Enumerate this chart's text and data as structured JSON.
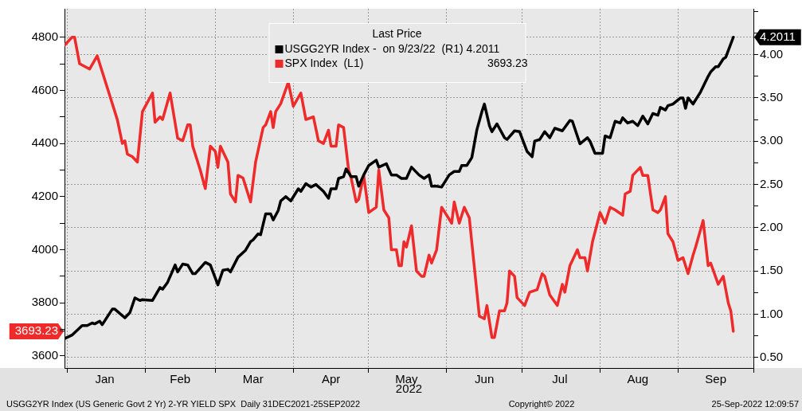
{
  "chart_data": {
    "type": "line",
    "xlabel": "2022",
    "legend_title": "Last Price",
    "legend": "top",
    "grid": true,
    "marker": "none",
    "line_style": "solid",
    "xlim": [
      "2021-12-31",
      "2022-10-01"
    ],
    "xticks": [
      {
        "value": "2022-01-01",
        "label": null
      },
      {
        "value": "2022-01-16",
        "label": "Jan"
      },
      {
        "value": "2022-02-01",
        "label": null
      },
      {
        "value": "2022-02-15",
        "label": "Feb"
      },
      {
        "value": "2022-03-01",
        "label": null
      },
      {
        "value": "2022-03-16",
        "label": "Mar"
      },
      {
        "value": "2022-04-01",
        "label": null
      },
      {
        "value": "2022-04-16",
        "label": "Apr"
      },
      {
        "value": "2022-05-01",
        "label": null
      },
      {
        "value": "2022-05-16",
        "label": "May"
      },
      {
        "value": "2022-06-01",
        "label": null
      },
      {
        "value": "2022-06-16",
        "label": "Jun"
      },
      {
        "value": "2022-07-01",
        "label": null
      },
      {
        "value": "2022-07-16",
        "label": "Jul"
      },
      {
        "value": "2022-08-01",
        "label": null
      },
      {
        "value": "2022-08-16",
        "label": "Aug"
      },
      {
        "value": "2022-09-01",
        "label": null
      },
      {
        "value": "2022-09-16",
        "label": "Sep"
      },
      {
        "value": "2022-10-01",
        "label": null
      }
    ],
    "ylim": [
      3555,
      4907
    ],
    "yticks": [
      3600,
      3693.23,
      {
        "value": 3700,
        "label": null
      },
      3800,
      {
        "value": 3900,
        "label": null
      },
      4000,
      {
        "value": 4100,
        "label": null
      },
      4200,
      {
        "value": 4300,
        "label": null
      },
      4400,
      {
        "value": 4500,
        "label": null
      },
      4600,
      {
        "value": 4700,
        "label": null
      },
      4800
    ],
    "y2lim": [
      0.38,
      4.53
    ],
    "y2ticks": [
      {
        "value": 0.5,
        "label": "0.50"
      },
      {
        "value": 0.75,
        "label": null
      },
      {
        "value": 1,
        "label": "1.00"
      },
      {
        "value": 1.25,
        "label": null
      },
      {
        "value": 1.5,
        "label": "1.50"
      },
      {
        "value": 1.75,
        "label": null
      },
      {
        "value": 2,
        "label": "2.00"
      },
      {
        "value": 2.25,
        "label": null
      },
      {
        "value": 2.5,
        "label": "2.50"
      },
      {
        "value": 2.75,
        "label": null
      },
      {
        "value": 3,
        "label": "3.00"
      },
      {
        "value": 3.25,
        "label": null
      },
      {
        "value": 3.5,
        "label": "3.50"
      },
      {
        "value": 3.75,
        "label": null
      },
      {
        "value": 4,
        "label": "4.00"
      },
      4.2011,
      {
        "value": 4.25,
        "label": null
      },
      {
        "value": 4.5,
        "label": null
      }
    ],
    "series": [
      {
        "name": "USGG2YR Index -  on 9/23/22  (R1) 4.2011",
        "color": "#000000",
        "axis": "y2",
        "x": [
          "2021-12-31",
          "2022-01-03",
          "2022-01-07",
          "2022-01-09",
          "2022-01-11",
          "2022-01-12",
          "2022-01-14",
          "2022-01-15",
          "2022-01-19",
          "2022-01-20",
          "2022-01-24",
          "2022-01-26",
          "2022-01-28",
          "2022-01-30",
          "2022-01-31",
          "2022-02-04",
          "2022-02-07",
          "2022-02-08",
          "2022-02-10",
          "2022-02-13",
          "2022-02-14",
          "2022-02-16",
          "2022-02-18",
          "2022-02-20",
          "2022-02-21",
          "2022-02-25",
          "2022-02-27",
          "2022-03-02",
          "2022-03-04",
          "2022-03-06",
          "2022-03-07",
          "2022-03-10",
          "2022-03-13",
          "2022-03-15",
          "2022-03-16",
          "2022-03-18",
          "2022-03-19",
          "2022-03-21",
          "2022-03-23",
          "2022-03-24",
          "2022-03-26",
          "2022-03-27",
          "2022-03-29",
          "2022-03-31",
          "2022-04-03",
          "2022-04-04",
          "2022-04-06",
          "2022-04-08",
          "2022-04-10",
          "2022-04-13",
          "2022-04-15",
          "2022-04-16",
          "2022-04-18",
          "2022-04-19",
          "2022-04-21",
          "2022-04-22",
          "2022-04-24",
          "2022-04-26",
          "2022-04-27",
          "2022-04-29",
          "2022-05-01",
          "2022-05-04",
          "2022-05-05",
          "2022-05-08",
          "2022-05-10",
          "2022-05-12",
          "2022-05-14",
          "2022-05-16",
          "2022-05-18",
          "2022-05-21",
          "2022-05-23",
          "2022-05-25",
          "2022-05-26",
          "2022-05-28",
          "2022-05-30",
          "2022-06-02",
          "2022-06-04",
          "2022-06-06",
          "2022-06-07",
          "2022-06-09",
          "2022-06-11",
          "2022-06-13",
          "2022-06-15",
          "2022-06-16",
          "2022-06-18",
          "2022-06-19",
          "2022-06-21",
          "2022-06-24",
          "2022-06-25",
          "2022-06-28",
          "2022-06-30",
          "2022-07-03",
          "2022-07-05",
          "2022-07-06",
          "2022-07-08",
          "2022-07-10",
          "2022-07-12",
          "2022-07-14",
          "2022-07-17",
          "2022-07-20",
          "2022-07-21",
          "2022-07-24",
          "2022-07-27",
          "2022-07-28",
          "2022-07-30",
          "2022-08-02",
          "2022-08-03",
          "2022-08-05",
          "2022-08-07",
          "2022-08-09",
          "2022-08-10",
          "2022-08-12",
          "2022-08-14",
          "2022-08-16",
          "2022-08-18",
          "2022-08-20",
          "2022-08-22",
          "2022-08-24",
          "2022-08-25",
          "2022-08-27",
          "2022-08-28",
          "2022-08-30",
          "2022-09-02",
          "2022-09-03",
          "2022-09-04",
          "2022-09-05",
          "2022-09-07",
          "2022-09-10",
          "2022-09-13",
          "2022-09-14",
          "2022-09-16",
          "2022-09-17",
          "2022-09-19",
          "2022-09-20",
          "2022-09-23"
        ],
        "values": [
          0.72,
          0.76,
          0.87,
          0.87,
          0.9,
          0.89,
          0.92,
          0.88,
          1.06,
          1.06,
          0.96,
          1.02,
          1.19,
          1.16,
          1.17,
          1.16,
          1.31,
          1.29,
          1.37,
          1.57,
          1.49,
          1.58,
          1.57,
          1.47,
          1.47,
          1.6,
          1.57,
          1.34,
          1.51,
          1.52,
          1.49,
          1.66,
          1.74,
          1.84,
          1.86,
          1.93,
          1.92,
          2.16,
          2.16,
          2.09,
          2.2,
          2.31,
          2.36,
          2.31,
          2.45,
          2.42,
          2.51,
          2.47,
          2.5,
          2.42,
          2.34,
          2.45,
          2.45,
          2.57,
          2.59,
          2.68,
          2.59,
          2.59,
          2.48,
          2.61,
          2.72,
          2.78,
          2.7,
          2.74,
          2.61,
          2.61,
          2.57,
          2.57,
          2.7,
          2.61,
          2.57,
          2.61,
          2.48,
          2.48,
          2.47,
          2.61,
          2.65,
          2.65,
          2.72,
          2.72,
          2.81,
          3.13,
          3.34,
          3.43,
          3.18,
          3.11,
          3.2,
          3.04,
          3.02,
          3.12,
          3.11,
          2.88,
          2.82,
          3.0,
          3.02,
          3.11,
          3.04,
          3.15,
          3.12,
          3.24,
          3.23,
          2.97,
          3.04,
          3.0,
          2.86,
          2.86,
          3.06,
          3.04,
          3.23,
          3.21,
          3.27,
          3.21,
          3.23,
          3.18,
          3.29,
          3.2,
          3.32,
          3.3,
          3.39,
          3.36,
          3.41,
          3.43,
          3.5,
          3.5,
          3.38,
          3.5,
          3.43,
          3.57,
          3.75,
          3.8,
          3.86,
          3.86,
          3.95,
          3.97,
          4.2011
        ]
      },
      {
        "name": "SPX Index  (L1)                                        3693.23",
        "color": "#ee2a2a",
        "axis": "y",
        "x": [
          "2021-12-31",
          "2022-01-03",
          "2022-01-04",
          "2022-01-06",
          "2022-01-10",
          "2022-01-13",
          "2022-01-15",
          "2022-01-18",
          "2022-01-21",
          "2022-01-23",
          "2022-01-24",
          "2022-01-25",
          "2022-01-27",
          "2022-01-29",
          "2022-01-31",
          "2022-02-04",
          "2022-02-05",
          "2022-02-07",
          "2022-02-08",
          "2022-02-11",
          "2022-02-14",
          "2022-02-16",
          "2022-02-18",
          "2022-02-19",
          "2022-02-20",
          "2022-02-23",
          "2022-02-25",
          "2022-02-27",
          "2022-03-01",
          "2022-03-02",
          "2022-03-03",
          "2022-03-06",
          "2022-03-07",
          "2022-03-09",
          "2022-03-10",
          "2022-03-12",
          "2022-03-15",
          "2022-03-17",
          "2022-03-20",
          "2022-03-21",
          "2022-03-23",
          "2022-03-24",
          "2022-03-25",
          "2022-03-27",
          "2022-03-30",
          "2022-04-01",
          "2022-04-04",
          "2022-04-06",
          "2022-04-09",
          "2022-04-11",
          "2022-04-13",
          "2022-04-15",
          "2022-04-16",
          "2022-04-18",
          "2022-04-19",
          "2022-04-21",
          "2022-04-23",
          "2022-04-24",
          "2022-04-26",
          "2022-04-27",
          "2022-04-29",
          "2022-05-01",
          "2022-05-04",
          "2022-05-05",
          "2022-05-07",
          "2022-05-09",
          "2022-05-10",
          "2022-05-12",
          "2022-05-13",
          "2022-05-14",
          "2022-05-15",
          "2022-05-16",
          "2022-05-18",
          "2022-05-20",
          "2022-05-22",
          "2022-05-23",
          "2022-05-25",
          "2022-05-26",
          "2022-05-28",
          "2022-05-30",
          "2022-06-03",
          "2022-06-04",
          "2022-06-06",
          "2022-06-08",
          "2022-06-10",
          "2022-06-14",
          "2022-06-16",
          "2022-06-17",
          "2022-06-19",
          "2022-06-20",
          "2022-06-22",
          "2022-06-24",
          "2022-06-25",
          "2022-06-26",
          "2022-06-28",
          "2022-06-29",
          "2022-07-02",
          "2022-07-04",
          "2022-07-07",
          "2022-07-09",
          "2022-07-10",
          "2022-07-12",
          "2022-07-15",
          "2022-07-17",
          "2022-07-18",
          "2022-07-20",
          "2022-07-21",
          "2022-07-23",
          "2022-07-24",
          "2022-07-26",
          "2022-07-27",
          "2022-07-29",
          "2022-08-01",
          "2022-08-03",
          "2022-08-05",
          "2022-08-07",
          "2022-08-10",
          "2022-08-11",
          "2022-08-13",
          "2022-08-14",
          "2022-08-17",
          "2022-08-18",
          "2022-08-20",
          "2022-08-22",
          "2022-08-24",
          "2022-08-25",
          "2022-08-27",
          "2022-08-28",
          "2022-08-30",
          "2022-09-01",
          "2022-09-03",
          "2022-09-05",
          "2022-09-07",
          "2022-09-08",
          "2022-09-11",
          "2022-09-13",
          "2022-09-14",
          "2022-09-17",
          "2022-09-19",
          "2022-09-21",
          "2022-09-22",
          "2022-09-23"
        ],
        "values": [
          4770,
          4800,
          4800,
          4700,
          4680,
          4730,
          4670,
          4580,
          4490,
          4400,
          4410,
          4360,
          4350,
          4330,
          4520,
          4590,
          4480,
          4500,
          4490,
          4590,
          4420,
          4410,
          4470,
          4470,
          4390,
          4300,
          4230,
          4390,
          4370,
          4310,
          4390,
          4330,
          4210,
          4180,
          4280,
          4270,
          4180,
          4330,
          4460,
          4470,
          4520,
          4460,
          4520,
          4550,
          4630,
          4540,
          4590,
          4490,
          4500,
          4410,
          4400,
          4450,
          4390,
          4390,
          4470,
          4460,
          4300,
          4270,
          4180,
          4190,
          4280,
          4140,
          4160,
          4300,
          4150,
          4120,
          4000,
          4000,
          3940,
          3940,
          4030,
          4010,
          4090,
          3920,
          3900,
          3900,
          3980,
          3950,
          4000,
          4160,
          4100,
          4180,
          4100,
          4160,
          4120,
          3750,
          3740,
          3790,
          3670,
          3670,
          3770,
          3770,
          3800,
          3920,
          3900,
          3820,
          3790,
          3840,
          3850,
          3910,
          3900,
          3830,
          3790,
          3870,
          3840,
          3940,
          3960,
          4000,
          3970,
          3970,
          3920,
          4030,
          4140,
          4100,
          4160,
          4150,
          4130,
          4210,
          4220,
          4280,
          4310,
          4280,
          4280,
          4150,
          4140,
          4150,
          4200,
          4060,
          4030,
          3960,
          3970,
          3910,
          3980,
          4010,
          4110,
          3940,
          3950,
          3870,
          3900,
          3800,
          3770,
          3693.23
        ]
      }
    ],
    "annotations": [
      "USGG2YR Index (US Generic Govt 2 Yr) 2-YR YIELD SPX  Daily 31DEC2021-25SEP2022",
      "Copyright© 2022",
      "25-Sep-2022 12:09:57"
    ]
  }
}
